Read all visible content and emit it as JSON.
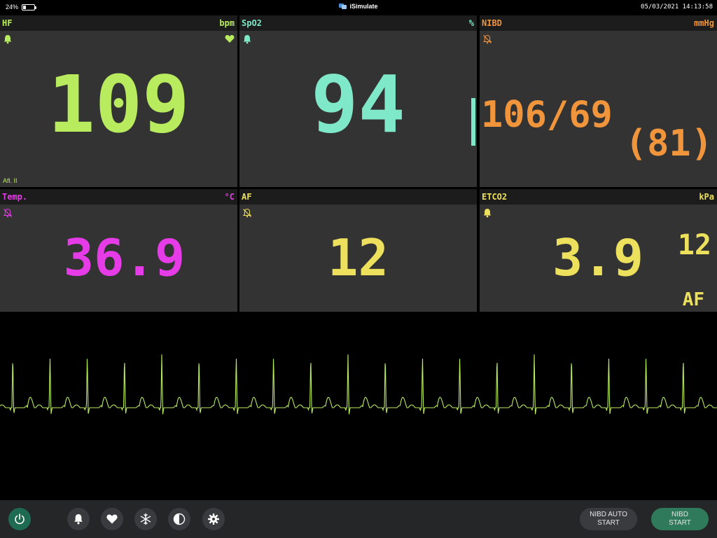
{
  "status_bar": {
    "battery_percent_text": "24%",
    "battery_level": 0.24,
    "app_name": "iSimulate",
    "datetime": "05/03/2021 14:13:58"
  },
  "panels": {
    "hf": {
      "title": "HF",
      "unit": "bpm",
      "value": "109",
      "lead": "Afl. II",
      "color": "#b8ec5e",
      "alarm_icon": "bell-icon",
      "pulse_icon": "heart-icon"
    },
    "spo2": {
      "title": "SpO2",
      "unit": "%",
      "value": "94",
      "color": "#7ee8c8",
      "alarm_icon": "bell-icon"
    },
    "nibd": {
      "title": "NIBD",
      "unit": "mmHg",
      "value": "106/69",
      "mean": "(81)",
      "color": "#f0953c",
      "alarm_icon": "bell-off-icon"
    },
    "temp": {
      "title": "Temp.",
      "unit": "°C",
      "value": "36.9",
      "color": "#e63ce8",
      "alarm_icon": "bell-off-icon"
    },
    "af": {
      "title": "AF",
      "unit": "",
      "value": "12",
      "color": "#ece05c",
      "alarm_icon": "bell-off-icon"
    },
    "etco2": {
      "title": "ETCO2",
      "unit": "kPa",
      "value": "3.9",
      "af_value": "12",
      "af_label": "AF",
      "color": "#ece05c",
      "alarm_icon": "bell-icon"
    }
  },
  "ecg": {
    "color": "#b8ec5e"
  },
  "toolbar": {
    "power_icon": "power-icon",
    "alarm_icon": "bell-icon",
    "heart_icon": "heart-icon",
    "snowflake_icon": "snowflake-icon",
    "contrast_icon": "contrast-icon",
    "settings_icon": "gear-icon",
    "nibd_auto_line1": "NIBD AUTO",
    "nibd_auto_line2": "START",
    "nibd_start_line1": "NIBD",
    "nibd_start_line2": "START"
  }
}
